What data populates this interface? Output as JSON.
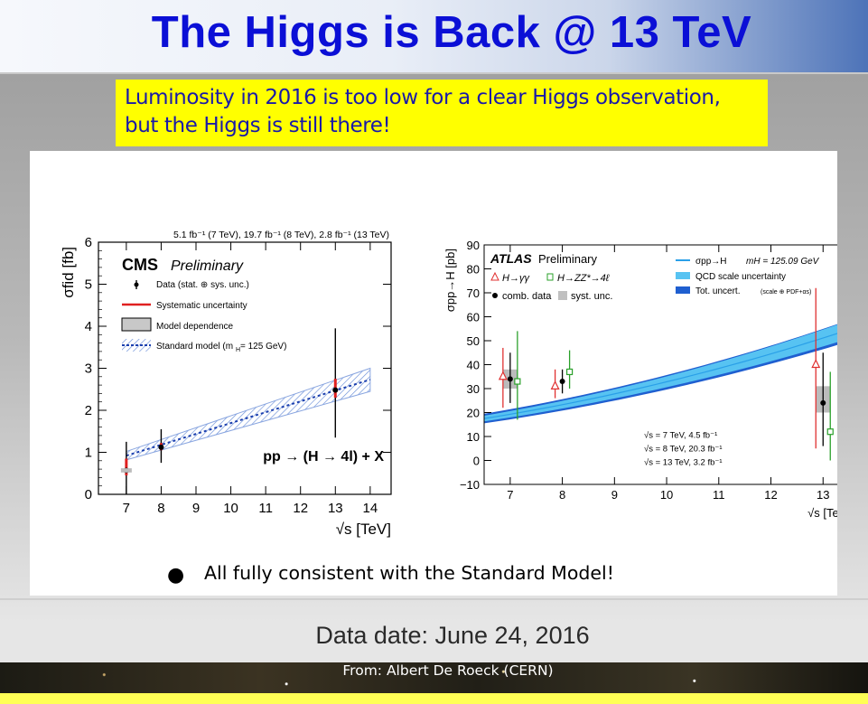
{
  "slide": {
    "title": "The Higgs is Back @ 13 TeV",
    "subtitle_line1": "Luminosity in 2016 is too low for a clear Higgs observation,",
    "subtitle_line2": "but the Higgs is still there!",
    "bullet": "All fully consistent with the Standard Model!",
    "data_date": "Data date: June 24, 2016",
    "footer": "From: Albert De Roeck (CERN)"
  },
  "colors": {
    "title": "#0b0fd6",
    "subtitle_bg": "#ffff00",
    "cms_band": "#6a8fd8",
    "atlas_band": "#57c3f2",
    "atlas_dark": "#1f5fd0"
  },
  "chart_data": [
    {
      "type": "scatter",
      "experiment": "CMS",
      "header_top": "5.1 fb⁻¹ (7 TeV), 19.7 fb⁻¹ (8 TeV), 2.8 fb⁻¹ (13 TeV)",
      "brand": "CMS",
      "brand_suffix": "Preliminary",
      "ylabel": "σfid [fb]",
      "xlabel": "√s [TeV]",
      "process": "pp → (H → 4l) + X",
      "xlim": [
        6.2,
        14.6
      ],
      "ylim": [
        0,
        6
      ],
      "xticks": [
        "7",
        "8",
        "9",
        "10",
        "11",
        "12",
        "13",
        "14"
      ],
      "yticks": [
        "0",
        "1",
        "2",
        "3",
        "4",
        "5",
        "6"
      ],
      "legend": [
        "Data (stat. ⊕ sys. unc.)",
        "Systematic uncertainty",
        "Model dependence",
        "Standard model (m",
        "H",
        " = 125 GeV)"
      ],
      "data": [
        {
          "x": 7,
          "y": 0.57,
          "lo": 0.0,
          "hi": 1.25,
          "syst_lo": 0.45,
          "syst_hi": 0.85
        },
        {
          "x": 8,
          "y": 1.12,
          "lo": 0.75,
          "hi": 1.55,
          "syst_lo": 1.05,
          "syst_hi": 1.22
        },
        {
          "x": 13,
          "y": 2.48,
          "lo": 1.35,
          "hi": 3.95,
          "syst_lo": 2.3,
          "syst_hi": 2.75
        }
      ],
      "sm_band": {
        "x": [
          7,
          14
        ],
        "center": [
          0.92,
          2.73
        ],
        "lo": [
          0.82,
          2.45
        ],
        "hi": [
          1.02,
          3.0
        ]
      }
    },
    {
      "type": "scatter",
      "experiment": "ATLAS",
      "brand": "ATLAS",
      "brand_suffix": "Preliminary",
      "ylabel": "σpp→H [pb]",
      "xlabel": "√s [TeV]",
      "xlim": [
        6.5,
        13.55
      ],
      "ylim": [
        -10,
        90
      ],
      "xticks": [
        "7",
        "8",
        "9",
        "10",
        "11",
        "12",
        "13"
      ],
      "yticks": [
        "−10",
        "0",
        "10",
        "20",
        "30",
        "40",
        "50",
        "60",
        "70",
        "80",
        "90"
      ],
      "legend": [
        "H→γγ",
        "H→ZZ*→4ℓ",
        "comb. data",
        "syst. unc.",
        "σpp→H",
        "mH = 125.09 GeV",
        "QCD scale uncertainty",
        "Tot. uncert.",
        "(scale ⊕ PDF+αs)"
      ],
      "lumi_notes": [
        "√s = 7 TeV,  4.5 fb⁻¹",
        "√s = 8 TeV,  20.3 fb⁻¹",
        "√s = 13 TeV, 3.2 fb⁻¹"
      ],
      "comb": [
        {
          "x": 7,
          "y": 34,
          "lo": 24,
          "hi": 45
        },
        {
          "x": 8,
          "y": 33,
          "lo": 28,
          "hi": 38
        },
        {
          "x": 13,
          "y": 24,
          "lo": 6,
          "hi": 45
        }
      ],
      "gamgam": [
        {
          "x": 7,
          "y": 35,
          "lo": 22,
          "hi": 47
        },
        {
          "x": 8,
          "y": 31,
          "lo": 26,
          "hi": 38
        },
        {
          "x": 13,
          "y": 40,
          "lo": 5,
          "hi": 72
        }
      ],
      "zz": [
        {
          "x": 7,
          "y": 33,
          "lo": 17,
          "hi": 54
        },
        {
          "x": 8,
          "y": 37,
          "lo": 30,
          "hi": 46
        },
        {
          "x": 13,
          "y": 12,
          "lo": 0,
          "hi": 37
        }
      ],
      "syst_boxes": [
        {
          "x": 7,
          "lo": 30,
          "hi": 38
        },
        {
          "x": 13,
          "lo": 20,
          "hi": 31
        }
      ],
      "band": {
        "x": [
          6.5,
          13.55
        ],
        "center": [
          17.5,
          55
        ],
        "lo": [
          15.5,
          50
        ],
        "hi": [
          19.5,
          59
        ]
      }
    }
  ]
}
